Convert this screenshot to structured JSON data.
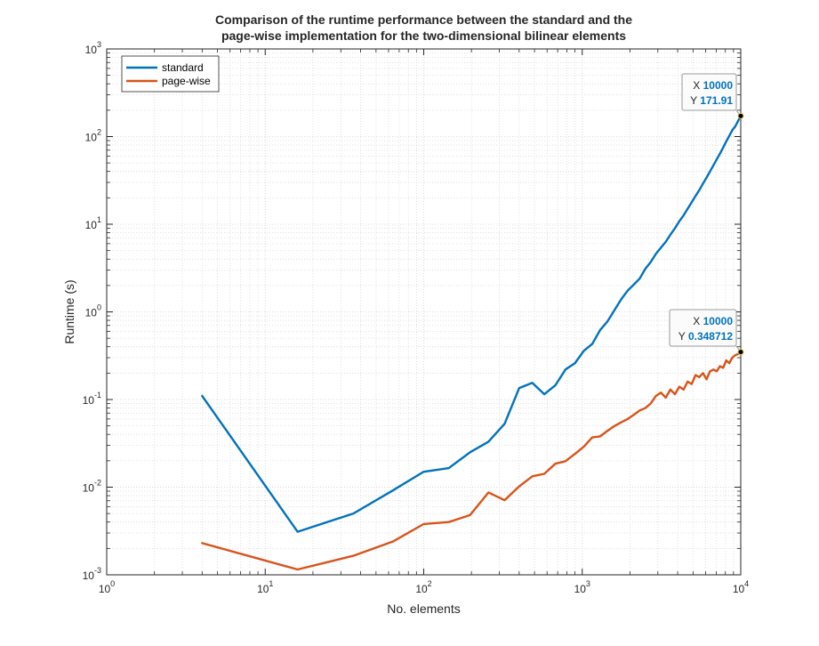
{
  "chart_data": {
    "type": "line",
    "title": [
      "Comparison of the runtime performance between the standard and the",
      "page-wise implementation for the two-dimensional bilinear elements"
    ],
    "xlabel": "No. elements",
    "ylabel": "Runtime (s)",
    "xscale": "log",
    "yscale": "log",
    "xlim": [
      1,
      10000
    ],
    "ylim": [
      0.001,
      1000
    ],
    "x_ticks": [
      {
        "base": "10",
        "exp": "0",
        "value": 1
      },
      {
        "base": "10",
        "exp": "1",
        "value": 10
      },
      {
        "base": "10",
        "exp": "2",
        "value": 100
      },
      {
        "base": "10",
        "exp": "3",
        "value": 1000
      },
      {
        "base": "10",
        "exp": "4",
        "value": 10000
      }
    ],
    "y_ticks": [
      {
        "base": "10",
        "exp": "-3",
        "value": 0.001
      },
      {
        "base": "10",
        "exp": "-2",
        "value": 0.01
      },
      {
        "base": "10",
        "exp": "-1",
        "value": 0.1
      },
      {
        "base": "10",
        "exp": "0",
        "value": 1
      },
      {
        "base": "10",
        "exp": "1",
        "value": 10
      },
      {
        "base": "10",
        "exp": "2",
        "value": 100
      },
      {
        "base": "10",
        "exp": "3",
        "value": 1000
      }
    ],
    "grid": true,
    "minor_grid": true,
    "legend_position": "top-left",
    "series": [
      {
        "name": "standard",
        "color": "#0072BD",
        "points": [
          [
            4,
            0.11
          ],
          [
            16,
            0.0031
          ],
          [
            36,
            0.005
          ],
          [
            64,
            0.0092
          ],
          [
            100,
            0.015
          ],
          [
            144,
            0.0165
          ],
          [
            196,
            0.025
          ],
          [
            256,
            0.033
          ],
          [
            324,
            0.053
          ],
          [
            400,
            0.135
          ],
          [
            484,
            0.155
          ],
          [
            576,
            0.115
          ],
          [
            676,
            0.145
          ],
          [
            784,
            0.22
          ],
          [
            900,
            0.26
          ],
          [
            1024,
            0.36
          ],
          [
            1156,
            0.43
          ],
          [
            1296,
            0.62
          ],
          [
            1444,
            0.78
          ],
          [
            1600,
            1.05
          ],
          [
            1764,
            1.4
          ],
          [
            1936,
            1.75
          ],
          [
            2116,
            2.05
          ],
          [
            2304,
            2.4
          ],
          [
            2500,
            3.1
          ],
          [
            2704,
            3.7
          ],
          [
            2916,
            4.6
          ],
          [
            3136,
            5.4
          ],
          [
            3364,
            6.3
          ],
          [
            3600,
            7.6
          ],
          [
            3844,
            9.0
          ],
          [
            4096,
            10.8
          ],
          [
            4356,
            12.6
          ],
          [
            4624,
            15.0
          ],
          [
            4900,
            17.8
          ],
          [
            5184,
            21.0
          ],
          [
            5476,
            24.5
          ],
          [
            5776,
            29.0
          ],
          [
            6084,
            34.0
          ],
          [
            6400,
            40.0
          ],
          [
            6724,
            47.0
          ],
          [
            7056,
            55.0
          ],
          [
            7396,
            64.0
          ],
          [
            7744,
            75.0
          ],
          [
            8100,
            88.0
          ],
          [
            8464,
            102.0
          ],
          [
            8836,
            118.0
          ],
          [
            9216,
            130.0
          ],
          [
            9604,
            150.0
          ],
          [
            10000,
            171.91
          ]
        ]
      },
      {
        "name": "page-wise",
        "color": "#D95319",
        "points": [
          [
            4,
            0.0023
          ],
          [
            16,
            0.00115
          ],
          [
            36,
            0.00165
          ],
          [
            64,
            0.0024
          ],
          [
            100,
            0.0038
          ],
          [
            144,
            0.004
          ],
          [
            196,
            0.0048
          ],
          [
            256,
            0.0087
          ],
          [
            324,
            0.0071
          ],
          [
            400,
            0.0102
          ],
          [
            484,
            0.0133
          ],
          [
            576,
            0.0142
          ],
          [
            676,
            0.0185
          ],
          [
            784,
            0.0198
          ],
          [
            900,
            0.024
          ],
          [
            1024,
            0.029
          ],
          [
            1156,
            0.037
          ],
          [
            1296,
            0.038
          ],
          [
            1444,
            0.044
          ],
          [
            1600,
            0.05
          ],
          [
            1764,
            0.055
          ],
          [
            1936,
            0.06
          ],
          [
            2116,
            0.067
          ],
          [
            2304,
            0.075
          ],
          [
            2500,
            0.08
          ],
          [
            2704,
            0.09
          ],
          [
            2916,
            0.11
          ],
          [
            3136,
            0.12
          ],
          [
            3364,
            0.105
          ],
          [
            3600,
            0.13
          ],
          [
            3844,
            0.115
          ],
          [
            4096,
            0.14
          ],
          [
            4356,
            0.13
          ],
          [
            4624,
            0.16
          ],
          [
            4900,
            0.15
          ],
          [
            5184,
            0.19
          ],
          [
            5476,
            0.18
          ],
          [
            5776,
            0.2
          ],
          [
            6084,
            0.17
          ],
          [
            6400,
            0.21
          ],
          [
            6724,
            0.22
          ],
          [
            7056,
            0.21
          ],
          [
            7396,
            0.24
          ],
          [
            7744,
            0.23
          ],
          [
            8100,
            0.28
          ],
          [
            8464,
            0.26
          ],
          [
            8836,
            0.3
          ],
          [
            9216,
            0.32
          ],
          [
            9604,
            0.33
          ],
          [
            10000,
            0.348712
          ]
        ]
      }
    ],
    "datatips": [
      {
        "x_label": "X",
        "x_value": "10000",
        "y_label": "Y",
        "y_value": "171.91",
        "x": 10000,
        "y": 171.91
      },
      {
        "x_label": "X",
        "x_value": "10000",
        "y_label": "Y",
        "y_value": "0.348712",
        "x": 10000,
        "y": 0.348712
      }
    ]
  }
}
